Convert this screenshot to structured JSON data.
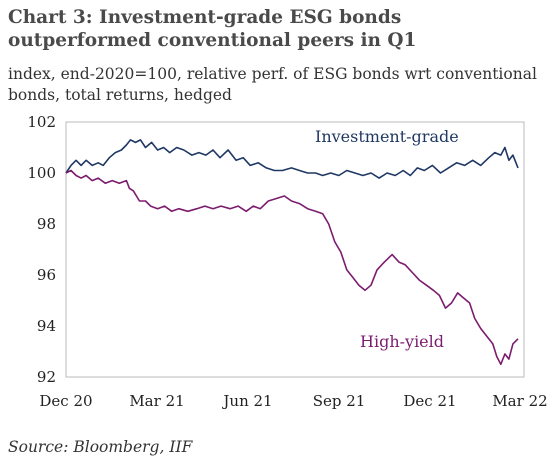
{
  "chart_data": {
    "type": "line",
    "title": "Chart 3:  Investment-grade ESG bonds outperformed conventional peers in Q1",
    "subtitle": "index, end-2020=100, relative perf. of ESG bonds wrt conventional bonds, total returns, hedged",
    "source": "Source: Bloomberg, IIF",
    "xlabel": "",
    "ylabel": "",
    "x_range": [
      "2020-12-31",
      "2022-03-25"
    ],
    "ylim": [
      92,
      102
    ],
    "y_ticks": [
      "102",
      "100",
      "98",
      "96",
      "94",
      "92"
    ],
    "x_ticks": [
      {
        "label": "Dec 20",
        "date": "2020-12-31"
      },
      {
        "label": "Mar 21",
        "date": "2021-03-31"
      },
      {
        "label": "Jun 21",
        "date": "2021-06-30"
      },
      {
        "label": "Sep 21",
        "date": "2021-09-30"
      },
      {
        "label": "Dec 21",
        "date": "2021-12-31"
      },
      {
        "label": "Mar 22",
        "date": "2022-03-31"
      }
    ],
    "grid": false,
    "legend": "none",
    "annotations": [
      {
        "text": "Investment-grade",
        "series": 0
      },
      {
        "text": "High-yield",
        "series": 1
      }
    ],
    "series": [
      {
        "name": "Investment-grade",
        "color": "#1f3864",
        "points": [
          [
            "2020-12-31",
            100.0
          ],
          [
            "2021-01-05",
            100.3
          ],
          [
            "2021-01-10",
            100.5
          ],
          [
            "2021-01-15",
            100.3
          ],
          [
            "2021-01-20",
            100.5
          ],
          [
            "2021-01-26",
            100.3
          ],
          [
            "2021-02-01",
            100.4
          ],
          [
            "2021-02-06",
            100.3
          ],
          [
            "2021-02-12",
            100.6
          ],
          [
            "2021-02-18",
            100.8
          ],
          [
            "2021-02-24",
            100.9
          ],
          [
            "2021-03-01",
            101.1
          ],
          [
            "2021-03-05",
            101.3
          ],
          [
            "2021-03-10",
            101.2
          ],
          [
            "2021-03-15",
            101.3
          ],
          [
            "2021-03-20",
            101.0
          ],
          [
            "2021-03-26",
            101.2
          ],
          [
            "2021-04-01",
            100.9
          ],
          [
            "2021-04-07",
            101.0
          ],
          [
            "2021-04-13",
            100.8
          ],
          [
            "2021-04-20",
            101.0
          ],
          [
            "2021-04-27",
            100.9
          ],
          [
            "2021-05-05",
            100.7
          ],
          [
            "2021-05-12",
            100.8
          ],
          [
            "2021-05-19",
            100.7
          ],
          [
            "2021-05-26",
            100.9
          ],
          [
            "2021-06-02",
            100.6
          ],
          [
            "2021-06-10",
            100.9
          ],
          [
            "2021-06-18",
            100.5
          ],
          [
            "2021-06-25",
            100.6
          ],
          [
            "2021-07-02",
            100.3
          ],
          [
            "2021-07-10",
            100.4
          ],
          [
            "2021-07-18",
            100.2
          ],
          [
            "2021-07-26",
            100.1
          ],
          [
            "2021-08-03",
            100.1
          ],
          [
            "2021-08-12",
            100.2
          ],
          [
            "2021-08-20",
            100.1
          ],
          [
            "2021-08-28",
            100.0
          ],
          [
            "2021-09-05",
            100.0
          ],
          [
            "2021-09-12",
            99.9
          ],
          [
            "2021-09-20",
            100.0
          ],
          [
            "2021-09-28",
            99.9
          ],
          [
            "2021-10-06",
            100.1
          ],
          [
            "2021-10-14",
            100.0
          ],
          [
            "2021-10-22",
            99.9
          ],
          [
            "2021-10-30",
            100.0
          ],
          [
            "2021-11-07",
            99.8
          ],
          [
            "2021-11-15",
            100.0
          ],
          [
            "2021-11-23",
            99.9
          ],
          [
            "2021-12-01",
            100.1
          ],
          [
            "2021-12-08",
            99.9
          ],
          [
            "2021-12-15",
            100.2
          ],
          [
            "2021-12-22",
            100.1
          ],
          [
            "2021-12-30",
            100.3
          ],
          [
            "2022-01-07",
            100.0
          ],
          [
            "2022-01-15",
            100.2
          ],
          [
            "2022-01-23",
            100.4
          ],
          [
            "2022-01-31",
            100.3
          ],
          [
            "2022-02-08",
            100.5
          ],
          [
            "2022-02-16",
            100.3
          ],
          [
            "2022-02-24",
            100.6
          ],
          [
            "2022-03-02",
            100.8
          ],
          [
            "2022-03-08",
            100.7
          ],
          [
            "2022-03-12",
            101.0
          ],
          [
            "2022-03-16",
            100.5
          ],
          [
            "2022-03-20",
            100.7
          ],
          [
            "2022-03-25",
            100.2
          ]
        ]
      },
      {
        "name": "High-yield",
        "color": "#7b1c6f",
        "points": [
          [
            "2020-12-31",
            100.0
          ],
          [
            "2021-01-05",
            100.1
          ],
          [
            "2021-01-10",
            99.9
          ],
          [
            "2021-01-15",
            99.8
          ],
          [
            "2021-01-20",
            99.9
          ],
          [
            "2021-01-26",
            99.7
          ],
          [
            "2021-02-01",
            99.8
          ],
          [
            "2021-02-08",
            99.6
          ],
          [
            "2021-02-15",
            99.7
          ],
          [
            "2021-02-22",
            99.6
          ],
          [
            "2021-03-01",
            99.7
          ],
          [
            "2021-03-04",
            99.4
          ],
          [
            "2021-03-08",
            99.3
          ],
          [
            "2021-03-14",
            98.9
          ],
          [
            "2021-03-20",
            98.9
          ],
          [
            "2021-03-25",
            98.7
          ],
          [
            "2021-04-01",
            98.6
          ],
          [
            "2021-04-08",
            98.7
          ],
          [
            "2021-04-15",
            98.5
          ],
          [
            "2021-04-22",
            98.6
          ],
          [
            "2021-05-01",
            98.5
          ],
          [
            "2021-05-10",
            98.6
          ],
          [
            "2021-05-18",
            98.7
          ],
          [
            "2021-05-26",
            98.6
          ],
          [
            "2021-06-03",
            98.7
          ],
          [
            "2021-06-12",
            98.6
          ],
          [
            "2021-06-20",
            98.7
          ],
          [
            "2021-06-28",
            98.5
          ],
          [
            "2021-07-05",
            98.7
          ],
          [
            "2021-07-12",
            98.6
          ],
          [
            "2021-07-20",
            98.9
          ],
          [
            "2021-07-28",
            99.0
          ],
          [
            "2021-08-05",
            99.1
          ],
          [
            "2021-08-12",
            98.9
          ],
          [
            "2021-08-20",
            98.8
          ],
          [
            "2021-08-28",
            98.6
          ],
          [
            "2021-09-05",
            98.5
          ],
          [
            "2021-09-12",
            98.4
          ],
          [
            "2021-09-18",
            98.0
          ],
          [
            "2021-09-24",
            97.3
          ],
          [
            "2021-09-30",
            96.9
          ],
          [
            "2021-10-06",
            96.2
          ],
          [
            "2021-10-12",
            95.9
          ],
          [
            "2021-10-18",
            95.6
          ],
          [
            "2021-10-24",
            95.4
          ],
          [
            "2021-10-30",
            95.6
          ],
          [
            "2021-11-05",
            96.2
          ],
          [
            "2021-11-12",
            96.5
          ],
          [
            "2021-11-20",
            96.8
          ],
          [
            "2021-11-27",
            96.5
          ],
          [
            "2021-12-03",
            96.4
          ],
          [
            "2021-12-10",
            96.1
          ],
          [
            "2021-12-17",
            95.8
          ],
          [
            "2021-12-24",
            95.6
          ],
          [
            "2021-12-31",
            95.4
          ],
          [
            "2022-01-06",
            95.2
          ],
          [
            "2022-01-12",
            94.7
          ],
          [
            "2022-01-18",
            94.9
          ],
          [
            "2022-01-24",
            95.3
          ],
          [
            "2022-01-30",
            95.1
          ],
          [
            "2022-02-05",
            94.9
          ],
          [
            "2022-02-10",
            94.3
          ],
          [
            "2022-02-16",
            93.9
          ],
          [
            "2022-02-22",
            93.6
          ],
          [
            "2022-02-28",
            93.3
          ],
          [
            "2022-03-04",
            92.8
          ],
          [
            "2022-03-08",
            92.5
          ],
          [
            "2022-03-12",
            92.9
          ],
          [
            "2022-03-16",
            92.7
          ],
          [
            "2022-03-20",
            93.3
          ],
          [
            "2022-03-25",
            93.5
          ]
        ]
      }
    ]
  }
}
